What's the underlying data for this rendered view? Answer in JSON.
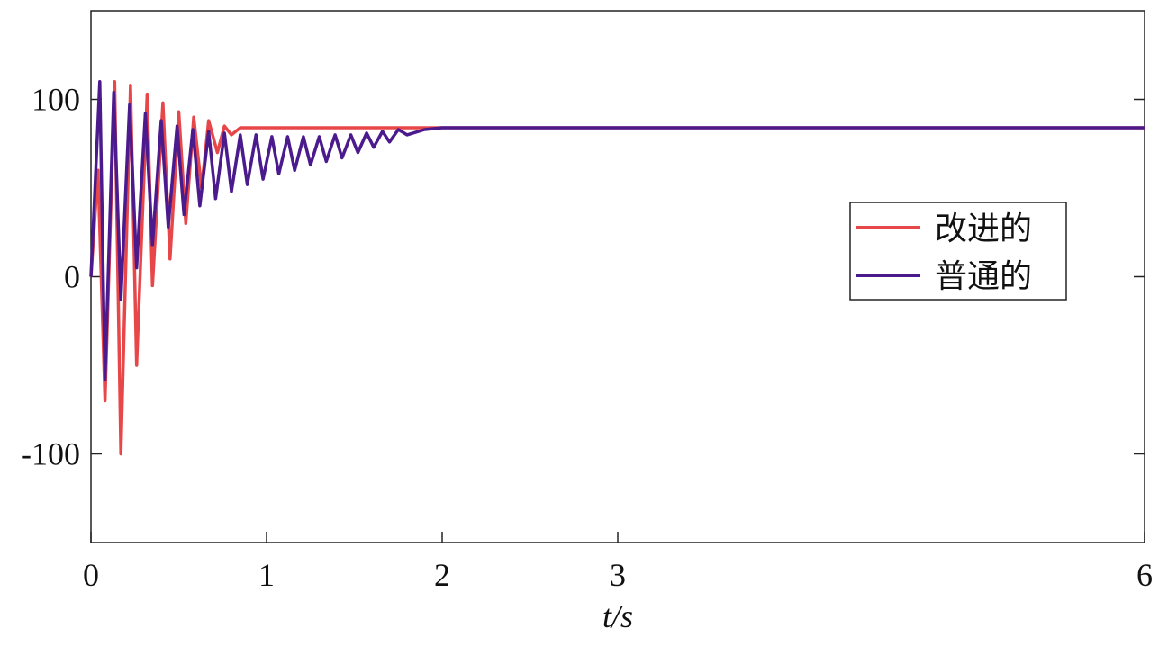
{
  "chart_data": {
    "type": "line",
    "x_label": "t/s",
    "xlim": [
      0,
      6
    ],
    "xticks": [
      0,
      1,
      2,
      3,
      6
    ],
    "ylim": [
      -150,
      150
    ],
    "yticks": [
      -100,
      0,
      100
    ],
    "legend": "right",
    "series": [
      {
        "name": "改进的",
        "color": "#e8474a",
        "x": [
          0,
          0.04,
          0.08,
          0.135,
          0.17,
          0.225,
          0.26,
          0.32,
          0.35,
          0.41,
          0.45,
          0.5,
          0.54,
          0.585,
          0.63,
          0.67,
          0.72,
          0.76,
          0.8,
          0.85,
          1,
          2,
          3,
          4,
          5,
          6
        ],
        "values": [
          0,
          60,
          -70,
          110,
          -100,
          108,
          -50,
          103,
          -5,
          98,
          10,
          93,
          30,
          90,
          50,
          88,
          70,
          85,
          80,
          84,
          84,
          84,
          84,
          84,
          84,
          84
        ]
      },
      {
        "name": "普通的",
        "color": "#4b1a8c",
        "x": [
          0,
          0.05,
          0.08,
          0.13,
          0.17,
          0.22,
          0.26,
          0.31,
          0.35,
          0.4,
          0.44,
          0.49,
          0.53,
          0.58,
          0.62,
          0.67,
          0.71,
          0.76,
          0.8,
          0.85,
          0.89,
          0.94,
          0.98,
          1.03,
          1.07,
          1.12,
          1.16,
          1.21,
          1.25,
          1.3,
          1.34,
          1.39,
          1.43,
          1.48,
          1.52,
          1.57,
          1.61,
          1.66,
          1.7,
          1.75,
          1.8,
          1.9,
          2.0,
          3,
          4,
          5,
          6
        ],
        "values": [
          0,
          110,
          -58,
          104,
          -13,
          97,
          5,
          92,
          18,
          88,
          28,
          85,
          35,
          83,
          40,
          82,
          44,
          81,
          48,
          80,
          52,
          80,
          55,
          79,
          58,
          79,
          60,
          79,
          63,
          79,
          65,
          80,
          67,
          80,
          70,
          81,
          73,
          82,
          76,
          83,
          80,
          83,
          84,
          84,
          84,
          84,
          84
        ]
      }
    ]
  }
}
